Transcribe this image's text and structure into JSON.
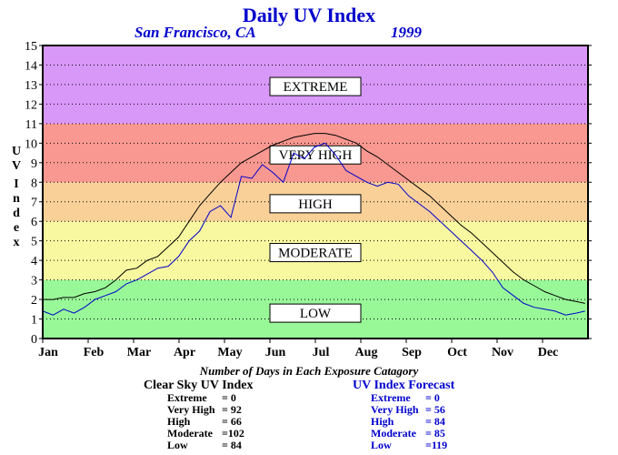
{
  "chart_data": {
    "type": "line",
    "title": "Daily UV Index",
    "subtitle_location": "San Francisco, CA",
    "subtitle_year": "1999",
    "ylabel": "UV Index",
    "ylim": [
      0,
      15
    ],
    "yticks": [
      "0",
      "1",
      "2",
      "3",
      "4",
      "5",
      "6",
      "7",
      "8",
      "9",
      "10",
      "11",
      "12",
      "13",
      "14",
      "15"
    ],
    "months": [
      "Jan",
      "Feb",
      "Mar",
      "Apr",
      "May",
      "Jun",
      "Jul",
      "Aug",
      "Sep",
      "Oct",
      "Nov",
      "Dec"
    ],
    "grid": true,
    "bands": [
      {
        "label": "LOW",
        "from": 0,
        "to": 3,
        "color": "#98f898"
      },
      {
        "label": "MODERATE",
        "from": 3,
        "to": 6,
        "color": "#f8f8a0"
      },
      {
        "label": "HIGH",
        "from": 6,
        "to": 8,
        "color": "#f8d098"
      },
      {
        "label": "VERY HIGH",
        "from": 8,
        "to": 11,
        "color": "#f89890"
      },
      {
        "label": "EXTREME",
        "from": 11,
        "to": 15,
        "color": "#d898f8"
      }
    ],
    "band_label_y": {
      "LOW": 1.3,
      "MODERATE": 4.4,
      "HIGH": 6.9,
      "VERY HIGH": 9.4,
      "EXTREME": 12.9
    },
    "series": [
      {
        "name": "Clear Sky UV Index",
        "color": "#000000",
        "x_days": [
          1,
          8,
          15,
          22,
          29,
          36,
          43,
          50,
          57,
          64,
          71,
          78,
          85,
          92,
          99,
          106,
          113,
          120,
          127,
          134,
          141,
          148,
          155,
          162,
          169,
          176,
          183,
          190,
          197,
          204,
          211,
          218,
          225,
          232,
          239,
          246,
          253,
          260,
          267,
          274,
          281,
          288,
          295,
          302,
          309,
          316,
          323,
          330,
          337,
          344,
          351,
          358,
          364
        ],
        "values": [
          2.0,
          2.0,
          2.1,
          2.1,
          2.3,
          2.4,
          2.6,
          3.0,
          3.5,
          3.6,
          4.0,
          4.2,
          4.7,
          5.2,
          6.0,
          6.8,
          7.4,
          8.0,
          8.5,
          9.0,
          9.3,
          9.6,
          9.9,
          10.1,
          10.3,
          10.4,
          10.5,
          10.5,
          10.4,
          10.2,
          10.0,
          9.6,
          9.3,
          8.9,
          8.5,
          8.1,
          7.7,
          7.3,
          6.8,
          6.3,
          5.8,
          5.4,
          4.9,
          4.4,
          3.9,
          3.4,
          3.0,
          2.7,
          2.4,
          2.2,
          2.0,
          1.9,
          1.8
        ]
      },
      {
        "name": "UV Index Forecast",
        "color": "#0000cc",
        "x_days": [
          1,
          8,
          15,
          22,
          29,
          36,
          43,
          50,
          57,
          64,
          71,
          78,
          85,
          92,
          99,
          106,
          113,
          120,
          127,
          134,
          141,
          148,
          155,
          162,
          169,
          176,
          183,
          190,
          197,
          204,
          211,
          218,
          225,
          232,
          239,
          246,
          253,
          260,
          267,
          274,
          281,
          288,
          295,
          302,
          309,
          316,
          323,
          330,
          337,
          344,
          351,
          358,
          364
        ],
        "values": [
          1.4,
          1.2,
          1.5,
          1.3,
          1.6,
          2.0,
          2.2,
          2.4,
          2.8,
          3.0,
          3.3,
          3.6,
          3.7,
          4.2,
          5.0,
          5.5,
          6.5,
          6.8,
          6.2,
          8.3,
          8.2,
          8.9,
          8.5,
          8.0,
          9.5,
          9.2,
          9.8,
          10.0,
          9.4,
          8.6,
          8.3,
          8.0,
          7.8,
          8.0,
          7.9,
          7.3,
          6.9,
          6.5,
          6.0,
          5.5,
          5.0,
          4.5,
          4.0,
          3.4,
          2.6,
          2.2,
          1.8,
          1.6,
          1.5,
          1.4,
          1.2,
          1.3,
          1.4
        ]
      }
    ]
  },
  "summary": {
    "heading": "Number of Days in Each Exposure Catagory",
    "clear_sky": {
      "title": "Clear Sky UV Index",
      "rows": [
        {
          "label": "Extreme",
          "value": "=   0"
        },
        {
          "label": "Very High",
          "value": "= 92"
        },
        {
          "label": "High",
          "value": "= 66"
        },
        {
          "label": "Moderate",
          "value": "=102"
        },
        {
          "label": "Low",
          "value": "= 84"
        }
      ]
    },
    "forecast": {
      "title": "UV Index Forecast",
      "rows": [
        {
          "label": "Extreme",
          "value": "=   0"
        },
        {
          "label": "Very High",
          "value": "= 56"
        },
        {
          "label": "High",
          "value": "= 84"
        },
        {
          "label": "Moderate",
          "value": "= 85"
        },
        {
          "label": "Low",
          "value": "=119"
        }
      ]
    }
  }
}
